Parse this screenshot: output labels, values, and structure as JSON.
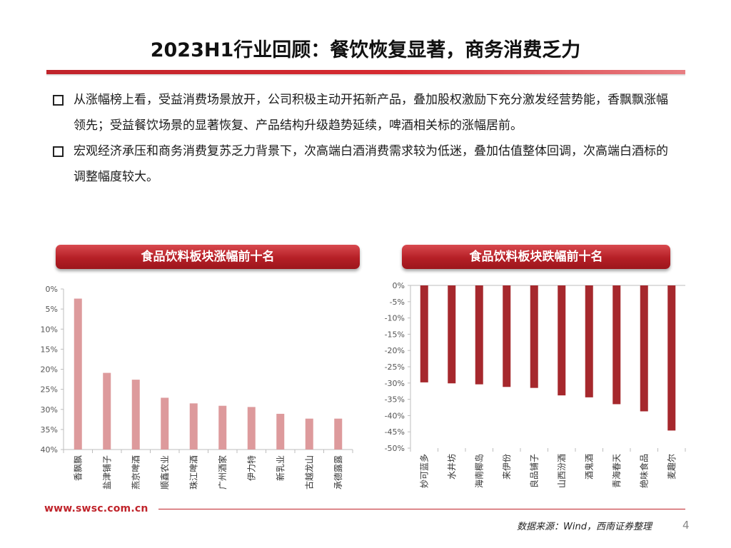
{
  "slide": {
    "title": "2023H1行业回顾：餐饮恢复显著，商务消费乏力",
    "bullets": [
      "从涨幅榜上看，受益消费场景放开，公司积极主动开拓新产品，叠加股权激励下充分激发经营势能，香飘飘涨幅领先；受益餐饮场景的显著恢复、产品结构升级趋势延续，啤酒相关标的涨幅居前。",
      "宏观经济承压和商务消费复苏乏力背景下，次高端白酒消费需求较为低迷，叠加估值整体回调，次高端白酒标的调整幅度较大。"
    ],
    "footer_url": "www.swsc.com.cn",
    "source": "数据来源：Wind，西南证券整理",
    "page_number": "4"
  },
  "chart_data": [
    {
      "type": "bar",
      "title": "食品饮料板块涨幅前十名",
      "categories": [
        "香飘飘",
        "盐津铺子",
        "燕京啤酒",
        "顺鑫农业",
        "珠江啤酒",
        "广州酒家",
        "伊力特",
        "新乳业",
        "古越龙山",
        "承德露露"
      ],
      "values": [
        37.6,
        19.1,
        17.4,
        12.9,
        11.5,
        10.9,
        10.6,
        8.9,
        7.7,
        7.7
      ],
      "ylim": [
        0,
        40
      ],
      "yticks": [
        "0%",
        "5%",
        "10%",
        "15%",
        "20%",
        "25%",
        "30%",
        "35%",
        "40%"
      ],
      "unit": "%",
      "color": "#dd9a9c",
      "grid": false
    },
    {
      "type": "bar",
      "title": "食品饮料板块跌幅前十名",
      "categories": [
        "妙可蓝多",
        "水井坊",
        "海南椰岛",
        "来伊份",
        "良品铺子",
        "山西汾酒",
        "酒鬼酒",
        "青海春天",
        "绝味食品",
        "麦趣尔"
      ],
      "values": [
        -29.8,
        -30.1,
        -30.4,
        -31.2,
        -31.5,
        -33.8,
        -34.4,
        -36.5,
        -38.7,
        -44.6
      ],
      "ylim": [
        -50,
        0
      ],
      "yticks": [
        "0%",
        "-5%",
        "-10%",
        "-15%",
        "-20%",
        "-25%",
        "-30%",
        "-35%",
        "-40%",
        "-45%",
        "-50%"
      ],
      "unit": "%",
      "color": "#a6282d",
      "grid": false
    }
  ]
}
